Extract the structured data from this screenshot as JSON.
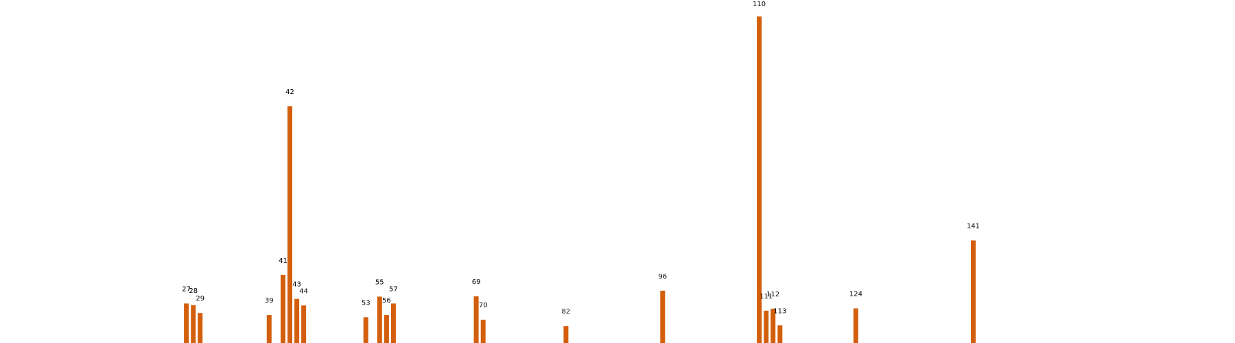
{
  "chart_data": {
    "type": "bar",
    "title": "",
    "xlabel": "",
    "ylabel": "",
    "xlim": [
      0,
      179
    ],
    "ylim": [
      0,
      100
    ],
    "grid": false,
    "bar_color": "#d35f0c",
    "x": [
      27,
      28,
      29,
      39,
      41,
      42,
      43,
      44,
      53,
      55,
      56,
      57,
      69,
      70,
      82,
      96,
      110,
      111,
      112,
      113,
      124,
      141
    ],
    "categories": [
      "27",
      "28",
      "29",
      "39",
      "41",
      "42",
      "43",
      "44",
      "53",
      "55",
      "56",
      "57",
      "69",
      "70",
      "82",
      "96",
      "110",
      "111",
      "112",
      "113",
      "124",
      "141"
    ],
    "values": [
      12.1,
      11.6,
      9.2,
      8.6,
      20.8,
      72.5,
      13.5,
      11.5,
      7.9,
      14.2,
      8.6,
      12.1,
      14.3,
      7.1,
      5.2,
      16.0,
      100.0,
      9.9,
      10.5,
      5.4,
      10.6,
      31.4
    ]
  }
}
